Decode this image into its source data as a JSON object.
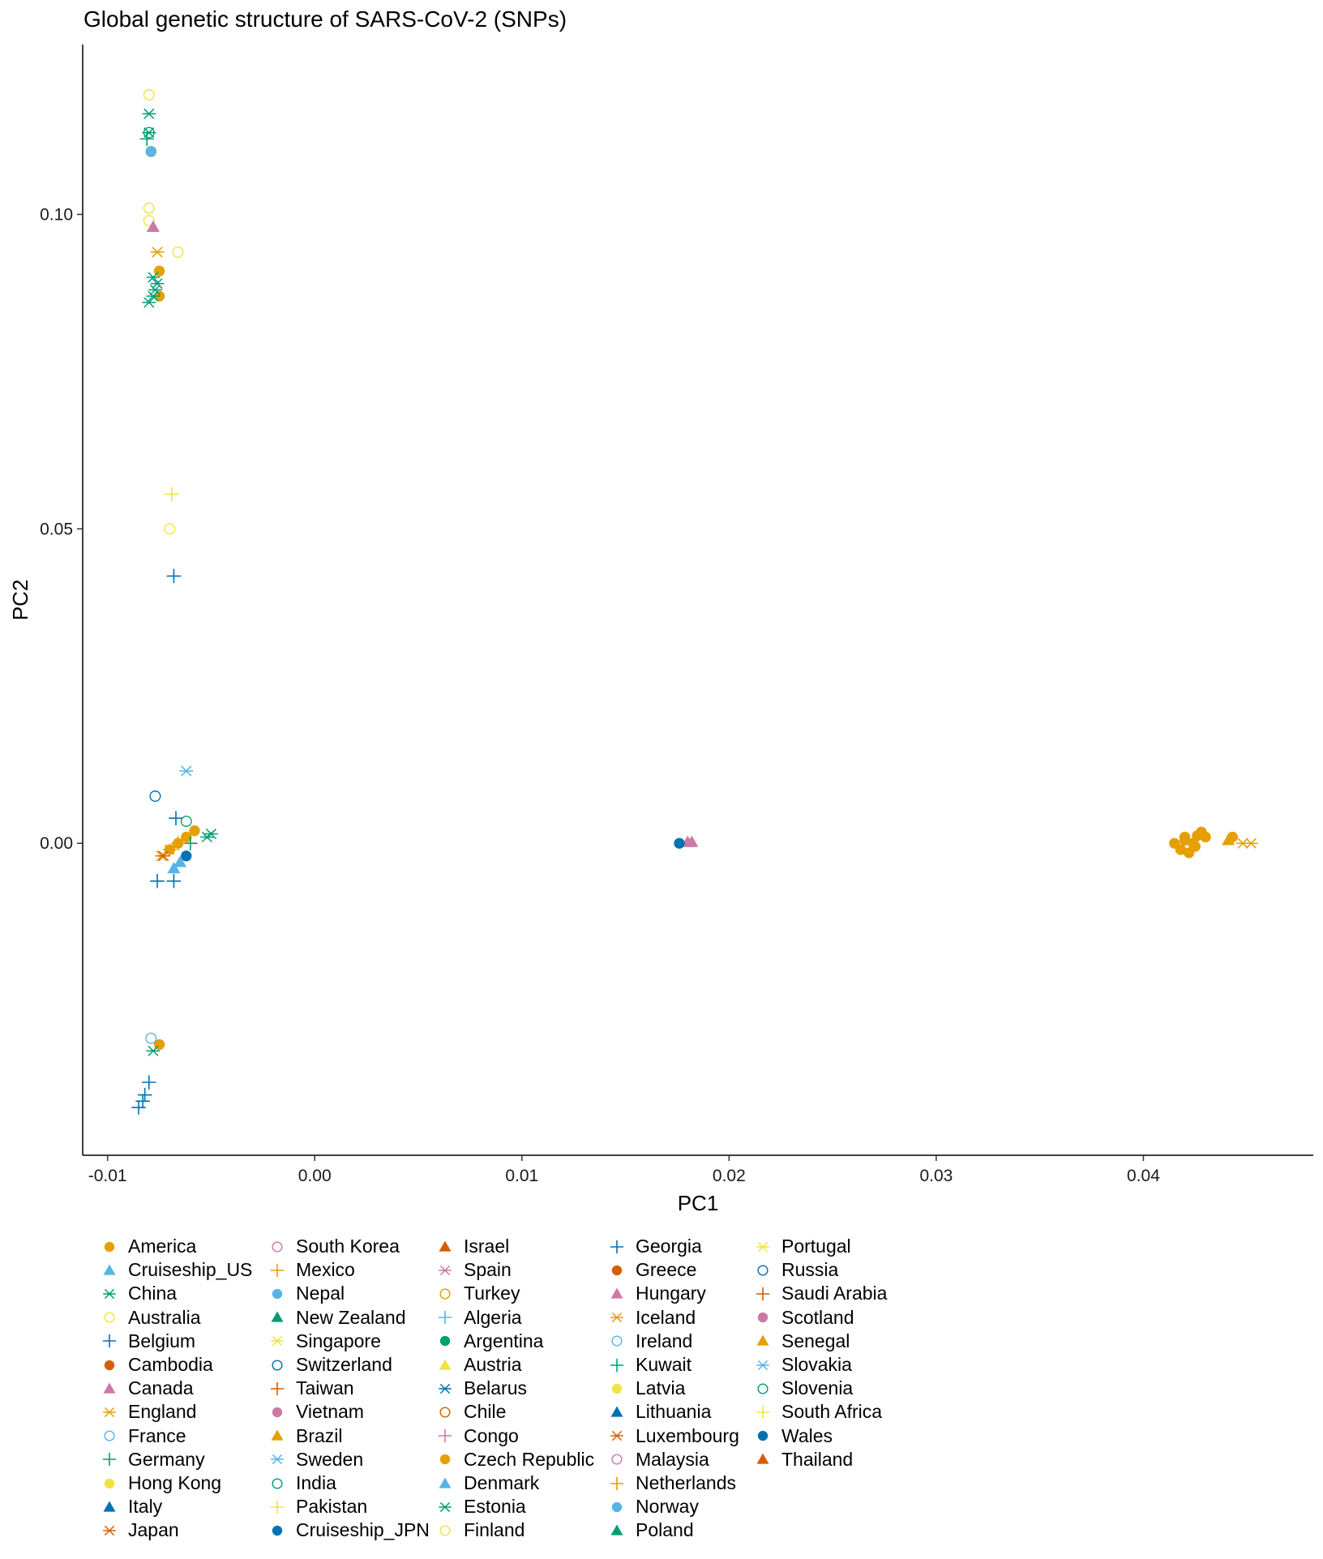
{
  "chart_data": {
    "type": "scatter",
    "title": "Global genetic structure of SARS-CoV-2 (SNPs)",
    "xlabel": "PC1",
    "ylabel": "PC2",
    "xlim": [
      -0.0112,
      0.0482
    ],
    "ylim": [
      -0.0496,
      0.127
    ],
    "x_ticks": [
      -0.01,
      0.0,
      0.01,
      0.02,
      0.03,
      0.04
    ],
    "x_tick_labels": [
      "-0.01",
      "0.00",
      "0.01",
      "0.02",
      "0.03",
      "0.04"
    ],
    "y_ticks": [
      0.0,
      0.05,
      0.1
    ],
    "y_tick_labels": [
      "0.00",
      "0.05",
      "0.10"
    ],
    "grid": false,
    "legend_position": "bottom",
    "series": [
      {
        "name": "America",
        "shape": "circle-filled",
        "color": "#E69F00",
        "points": [
          [
            -0.0075,
            0.091
          ],
          [
            -0.0075,
            0.087
          ],
          [
            -0.0062,
            0.001
          ],
          [
            -0.0058,
            0.002
          ],
          [
            -0.0066,
            0.0
          ],
          [
            -0.007,
            -0.001
          ],
          [
            -0.0075,
            -0.032
          ],
          [
            0.0415,
            0.0
          ],
          [
            0.0418,
            -0.001
          ],
          [
            0.042,
            0.0005
          ],
          [
            0.0422,
            -0.0015
          ],
          [
            0.0424,
            0.0
          ],
          [
            0.0426,
            0.0012
          ],
          [
            0.0428,
            0.0018
          ],
          [
            0.043,
            0.001
          ],
          [
            0.042,
            0.001
          ],
          [
            0.0425,
            -0.0005
          ],
          [
            0.0443,
            0.001
          ]
        ]
      },
      {
        "name": "Cruiseship_US",
        "shape": "triangle-filled",
        "color": "#56B4E9",
        "points": [
          [
            -0.0065,
            -0.003
          ],
          [
            -0.0068,
            -0.004
          ]
        ]
      },
      {
        "name": "China",
        "shape": "asterisk",
        "color": "#009E73",
        "points": [
          [
            -0.008,
            0.116
          ],
          [
            -0.008,
            0.113
          ],
          [
            -0.0078,
            0.09
          ],
          [
            -0.0078,
            0.087
          ],
          [
            -0.008,
            0.086
          ],
          [
            -0.0076,
            0.089
          ],
          [
            -0.0052,
            0.001
          ],
          [
            -0.0078,
            -0.033
          ],
          [
            -0.0077,
            0.088
          ]
        ]
      },
      {
        "name": "Australia",
        "shape": "circle-open",
        "color": "#F0E442",
        "points": [
          [
            -0.008,
            0.119
          ],
          [
            -0.008,
            0.101
          ],
          [
            -0.008,
            0.099
          ],
          [
            -0.0066,
            0.094
          ],
          [
            -0.007,
            0.05
          ],
          [
            -0.0079,
            0.11
          ]
        ]
      },
      {
        "name": "Belgium",
        "shape": "plus",
        "color": "#0072B2",
        "points": [
          [
            -0.0067,
            0.004
          ],
          [
            -0.0076,
            -0.006
          ],
          [
            -0.0068,
            -0.006
          ],
          [
            -0.0085,
            -0.042
          ],
          [
            -0.0083,
            -0.041
          ],
          [
            -0.0082,
            -0.04
          ],
          [
            -0.008,
            -0.038
          ]
        ]
      },
      {
        "name": "Cambodia",
        "shape": "circle-filled",
        "color": "#D55E00",
        "points": []
      },
      {
        "name": "Canada",
        "shape": "triangle-filled",
        "color": "#CC79A7",
        "points": [
          [
            -0.0078,
            0.098
          ],
          [
            0.018,
            0.0002
          ]
        ]
      },
      {
        "name": "England",
        "shape": "asterisk",
        "color": "#E69F00",
        "points": [
          [
            -0.0076,
            0.094
          ],
          [
            -0.0074,
            -0.002
          ],
          [
            -0.007,
            -0.001
          ],
          [
            0.0448,
            0.0
          ],
          [
            0.0452,
            0.0
          ]
        ]
      },
      {
        "name": "France",
        "shape": "circle-open",
        "color": "#56B4E9",
        "points": [
          [
            -0.0079,
            -0.031
          ]
        ]
      },
      {
        "name": "Germany",
        "shape": "plus",
        "color": "#009E73",
        "points": [
          [
            -0.0081,
            0.112
          ],
          [
            -0.006,
            0.0
          ]
        ]
      },
      {
        "name": "Hong Kong",
        "shape": "circle-filled",
        "color": "#F0E442",
        "points": []
      },
      {
        "name": "Italy",
        "shape": "triangle-filled",
        "color": "#0072B2",
        "points": []
      },
      {
        "name": "Japan",
        "shape": "asterisk",
        "color": "#D55E00",
        "points": [
          [
            -0.0073,
            -0.002
          ]
        ]
      },
      {
        "name": "South Korea",
        "shape": "circle-open",
        "color": "#CC79A7",
        "points": []
      },
      {
        "name": "Mexico",
        "shape": "plus",
        "color": "#E69F00",
        "points": [
          [
            -0.0066,
            0.0
          ]
        ]
      },
      {
        "name": "Nepal",
        "shape": "circle-filled",
        "color": "#56B4E9",
        "points": [
          [
            -0.0079,
            0.11
          ]
        ]
      },
      {
        "name": "New Zealand",
        "shape": "triangle-filled",
        "color": "#009E73",
        "points": []
      },
      {
        "name": "Singapore",
        "shape": "asterisk",
        "color": "#F0E442",
        "points": []
      },
      {
        "name": "Switzerland",
        "shape": "circle-open",
        "color": "#0072B2",
        "points": [
          [
            -0.0077,
            0.0075
          ]
        ]
      },
      {
        "name": "Taiwan",
        "shape": "plus",
        "color": "#D55E00",
        "points": []
      },
      {
        "name": "Vietnam",
        "shape": "circle-filled",
        "color": "#CC79A7",
        "points": []
      },
      {
        "name": "Brazil",
        "shape": "triangle-filled",
        "color": "#E69F00",
        "points": [
          [
            0.0441,
            0.0005
          ]
        ]
      },
      {
        "name": "Sweden",
        "shape": "asterisk",
        "color": "#56B4E9",
        "points": [
          [
            -0.0062,
            0.0115
          ]
        ]
      },
      {
        "name": "India",
        "shape": "circle-open",
        "color": "#009E73",
        "points": [
          [
            -0.008,
            0.113
          ],
          [
            -0.0062,
            0.0035
          ]
        ]
      },
      {
        "name": "Pakistan",
        "shape": "plus",
        "color": "#F0E442",
        "points": [
          [
            -0.0069,
            0.0555
          ]
        ]
      },
      {
        "name": "Cruiseship_JPN",
        "shape": "circle-filled",
        "color": "#0072B2",
        "points": [
          [
            0.0176,
            0.0
          ],
          [
            -0.0062,
            -0.002
          ]
        ]
      },
      {
        "name": "Israel",
        "shape": "triangle-filled",
        "color": "#D55E00",
        "points": []
      },
      {
        "name": "Spain",
        "shape": "asterisk",
        "color": "#CC79A7",
        "points": []
      },
      {
        "name": "Turkey",
        "shape": "circle-open",
        "color": "#E69F00",
        "points": []
      },
      {
        "name": "Algeria",
        "shape": "plus",
        "color": "#56B4E9",
        "points": []
      },
      {
        "name": "Argentina",
        "shape": "circle-filled",
        "color": "#009E73",
        "points": []
      },
      {
        "name": "Austria",
        "shape": "triangle-filled",
        "color": "#F0E442",
        "points": []
      },
      {
        "name": "Belarus",
        "shape": "asterisk",
        "color": "#0072B2",
        "points": []
      },
      {
        "name": "Chile",
        "shape": "circle-open",
        "color": "#D55E00",
        "points": []
      },
      {
        "name": "Congo",
        "shape": "plus",
        "color": "#CC79A7",
        "points": []
      },
      {
        "name": "Czech Republic",
        "shape": "circle-filled",
        "color": "#E69F00",
        "points": []
      },
      {
        "name": "Denmark",
        "shape": "triangle-filled",
        "color": "#56B4E9",
        "points": []
      },
      {
        "name": "Estonia",
        "shape": "asterisk",
        "color": "#009E73",
        "points": [
          [
            -0.005,
            0.0015
          ]
        ]
      },
      {
        "name": "Finland",
        "shape": "circle-open",
        "color": "#F0E442",
        "points": []
      },
      {
        "name": "Georgia",
        "shape": "plus",
        "color": "#0072B2",
        "points": [
          [
            -0.0068,
            0.0425
          ]
        ]
      },
      {
        "name": "Greece",
        "shape": "circle-filled",
        "color": "#D55E00",
        "points": []
      },
      {
        "name": "Hungary",
        "shape": "triangle-filled",
        "color": "#CC79A7",
        "points": [
          [
            0.0182,
            0.0002
          ]
        ]
      },
      {
        "name": "Iceland",
        "shape": "asterisk",
        "color": "#E69F00",
        "points": []
      },
      {
        "name": "Ireland",
        "shape": "circle-open",
        "color": "#56B4E9",
        "points": []
      },
      {
        "name": "Kuwait",
        "shape": "plus",
        "color": "#009E73",
        "points": []
      },
      {
        "name": "Latvia",
        "shape": "circle-filled",
        "color": "#F0E442",
        "points": []
      },
      {
        "name": "Lithuania",
        "shape": "triangle-filled",
        "color": "#0072B2",
        "points": []
      },
      {
        "name": "Luxembourg",
        "shape": "asterisk",
        "color": "#D55E00",
        "points": []
      },
      {
        "name": "Malaysia",
        "shape": "circle-open",
        "color": "#CC79A7",
        "points": []
      },
      {
        "name": "Netherlands",
        "shape": "plus",
        "color": "#E69F00",
        "points": []
      },
      {
        "name": "Norway",
        "shape": "circle-filled",
        "color": "#56B4E9",
        "points": []
      },
      {
        "name": "Poland",
        "shape": "triangle-filled",
        "color": "#009E73",
        "points": []
      },
      {
        "name": "Portugal",
        "shape": "asterisk",
        "color": "#F0E442",
        "points": []
      },
      {
        "name": "Russia",
        "shape": "circle-open",
        "color": "#0072B2",
        "points": []
      },
      {
        "name": "Saudi Arabia",
        "shape": "plus",
        "color": "#D55E00",
        "points": []
      },
      {
        "name": "Scotland",
        "shape": "circle-filled",
        "color": "#CC79A7",
        "points": []
      },
      {
        "name": "Senegal",
        "shape": "triangle-filled",
        "color": "#E69F00",
        "points": []
      },
      {
        "name": "Slovakia",
        "shape": "asterisk",
        "color": "#56B4E9",
        "points": []
      },
      {
        "name": "Slovenia",
        "shape": "circle-open",
        "color": "#009E73",
        "points": []
      },
      {
        "name": "South Africa",
        "shape": "plus",
        "color": "#F0E442",
        "points": []
      },
      {
        "name": "Wales",
        "shape": "circle-filled",
        "color": "#0072B2",
        "points": []
      },
      {
        "name": "Thailand",
        "shape": "triangle-filled",
        "color": "#D55E00",
        "points": []
      }
    ]
  }
}
